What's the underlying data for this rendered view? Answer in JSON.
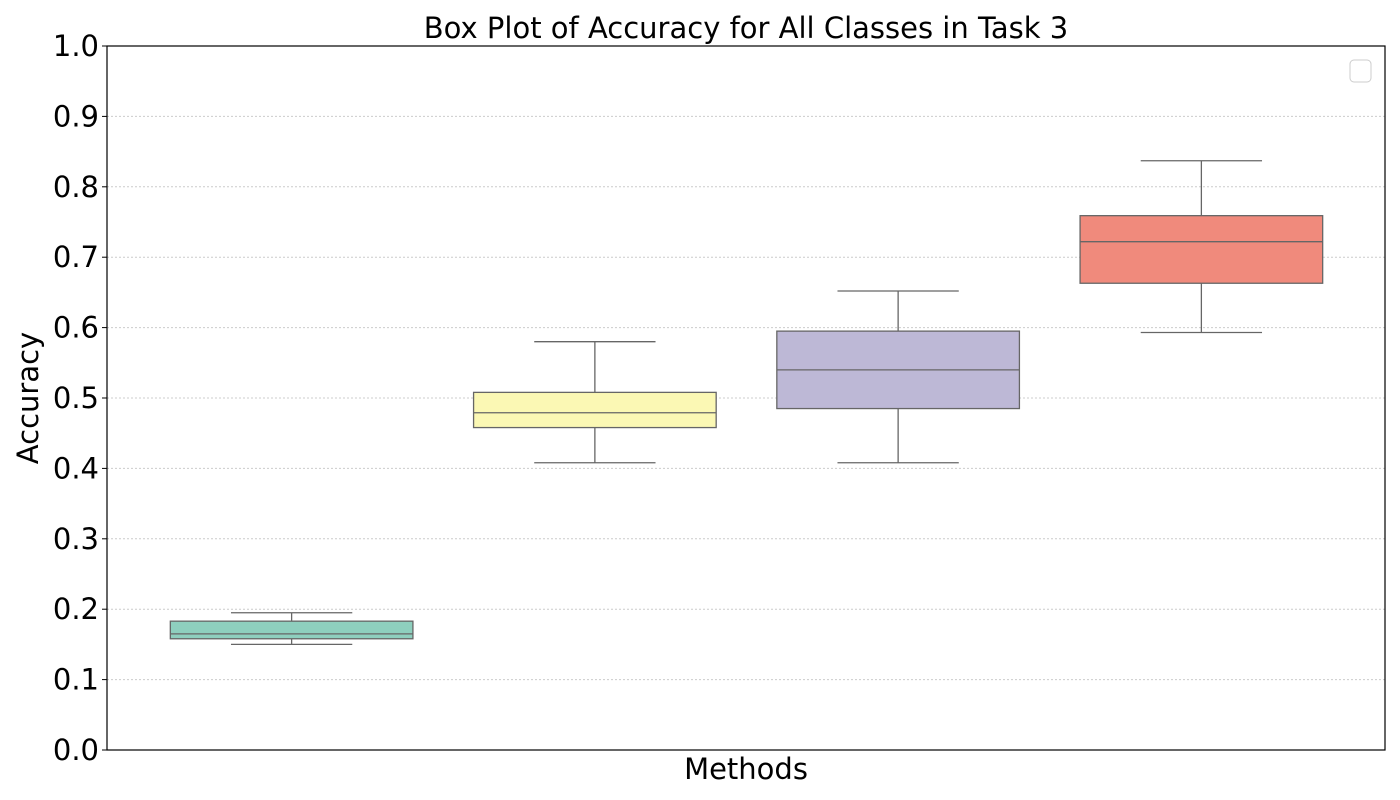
{
  "chart_data": {
    "type": "box",
    "title": "Box Plot of Accuracy for All Classes in Task 3",
    "xlabel": "Methods",
    "ylabel": "Accuracy",
    "ylim": [
      0.0,
      1.0
    ],
    "yticks": [
      "0.0",
      "0.1",
      "0.2",
      "0.3",
      "0.4",
      "0.5",
      "0.6",
      "0.7",
      "0.8",
      "0.9",
      "1.0"
    ],
    "grid": "horizontal dotted",
    "legend": "top-right (empty)",
    "series": [
      {
        "min": 0.15,
        "q1": 0.158,
        "median": 0.165,
        "q3": 0.183,
        "max": 0.195,
        "color": "#8ecfbe"
      },
      {
        "min": 0.408,
        "q1": 0.458,
        "median": 0.479,
        "q3": 0.508,
        "max": 0.58,
        "color": "#fbf8b4"
      },
      {
        "min": 0.408,
        "q1": 0.485,
        "median": 0.54,
        "q3": 0.595,
        "max": 0.652,
        "color": "#bdb8d6"
      },
      {
        "min": 0.593,
        "q1": 0.663,
        "median": 0.722,
        "q3": 0.759,
        "max": 0.837,
        "color": "#f08a7c"
      }
    ]
  }
}
